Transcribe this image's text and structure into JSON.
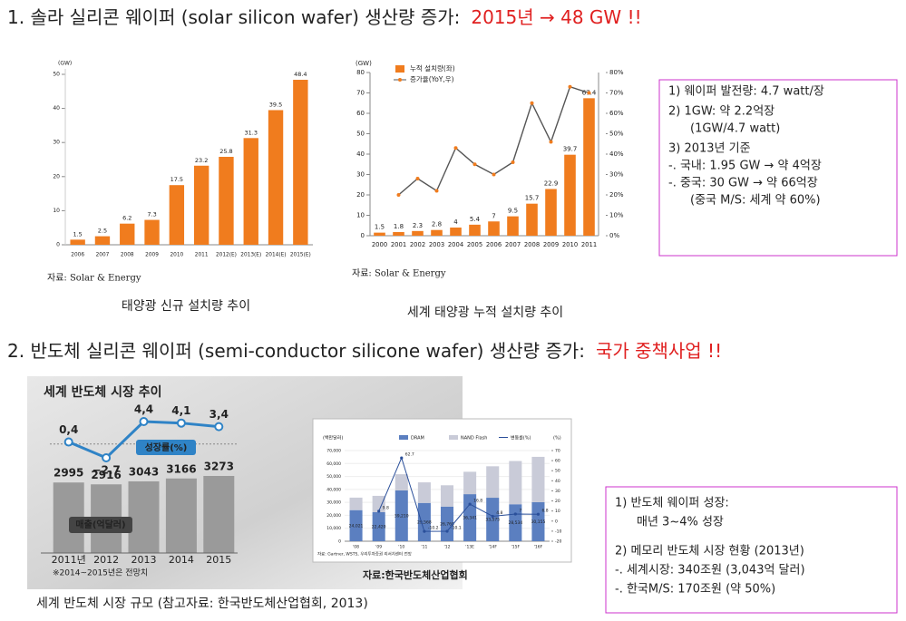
{
  "slide": {
    "heading1": {
      "text": "1. 솔라 실리콘 웨이퍼 (solar silicon wafer) 생산량 증가:",
      "highlight": "2015년 → 48 GW !!"
    },
    "notes1": [
      "1) 웨이퍼 발전량: 4.7 watt/장",
      "2) 1GW: 약 2.2억장",
      "(1GW/4.7 watt)",
      "3) 2013년 기준",
      "-. 국내: 1.95 GW → 약 4억장",
      "-. 중국: 30 GW → 약 66억장",
      "(중국 M/S: 세계 약 60%)"
    ],
    "heading2": {
      "text": "2. 반도체 실리콘 웨이퍼 (semi-conductor silicone wafer) 생산량 증가:",
      "highlight": "국가 중책사업 !!"
    },
    "notes2": [
      "1) 반도체 웨이퍼 성장:",
      "매년 3~4% 성장",
      "2) 메모리 반도체 시장 현황 (2013년)",
      "-. 세계시장: 340조원 (3,043억 달러)",
      "-. 한국M/S: 170조원 (약 50%)"
    ],
    "caption3": "세계 반도체 시장 규모 (참고자료: 한국반도체산업협회, 2013)"
  },
  "chart_data": [
    {
      "type": "bar",
      "unit": "(GW)",
      "caption": "태양광 신규 설치량 추이",
      "source": "자료: Solar & Energy",
      "categories": [
        "2006",
        "2007",
        "2008",
        "2009",
        "2010",
        "2011",
        "2012(E)",
        "2013(E)",
        "2014(E)",
        "2015(E)"
      ],
      "values": [
        1.5,
        2.5,
        6.2,
        7.3,
        17.5,
        23.2,
        25.8,
        31.3,
        39.5,
        48.4
      ],
      "color": "#f07c1e",
      "ylim": [
        0,
        50
      ],
      "yticks": [
        0,
        10,
        20,
        30,
        40,
        50
      ]
    },
    {
      "type": "bar_line",
      "unit": "(GW)",
      "caption": "세계 태양광 누적 설치량 추이",
      "source": "자료: Solar & Energy",
      "categories": [
        "2000",
        "2001",
        "2002",
        "2003",
        "2004",
        "2005",
        "2006",
        "2007",
        "2008",
        "2009",
        "2010",
        "2011"
      ],
      "series": [
        {
          "name": "누적 설치량(좌)",
          "color": "#f07c1e",
          "type": "bar",
          "values": [
            1.5,
            1.8,
            2.3,
            2.8,
            4.0,
            5.4,
            7.0,
            9.5,
            15.7,
            22.9,
            39.7,
            67.4
          ]
        },
        {
          "name": "증가율(YoY,우)",
          "color": "#555555",
          "type": "line",
          "axis": "y2",
          "values": [
            null,
            20,
            28,
            22,
            43,
            35,
            30,
            36,
            65,
            46,
            73,
            70
          ]
        }
      ],
      "ylim": [
        0,
        80
      ],
      "yticks": [
        0,
        10,
        20,
        30,
        40,
        50,
        60,
        70,
        80
      ],
      "y2lim": [
        0,
        80
      ],
      "y2ticks": [
        {
          "value": 0,
          "label": "0%"
        },
        {
          "value": 10,
          "label": "10%"
        },
        {
          "value": 20,
          "label": "20%"
        },
        {
          "value": 30,
          "label": "30%"
        },
        {
          "value": 40,
          "label": "40%"
        },
        {
          "value": 50,
          "label": "50%"
        },
        {
          "value": 60,
          "label": "60%"
        },
        {
          "value": 70,
          "label": "70%"
        },
        {
          "value": 80,
          "label": "80%"
        }
      ],
      "legend": "upper left"
    },
    {
      "type": "combo_panel",
      "title": "세계 반도체 시장 추이",
      "footnote": "※2014~2015년은 전망치",
      "source": "자료:한국반도체산업협회",
      "categories": [
        "2011년",
        "2012",
        "2013",
        "2014",
        "2015"
      ],
      "series": [
        {
          "name": "매출(억달러)",
          "color": "#9a9a9a",
          "type": "bar",
          "values": [
            2995,
            2916,
            3043,
            3166,
            3273
          ]
        },
        {
          "name": "성장률(%)",
          "color": "#2f83c6",
          "type": "line",
          "values": [
            0.4,
            -2.7,
            4.4,
            4.1,
            3.4
          ],
          "value_labels": [
            "0,4",
            "−2,7",
            "4,4",
            "4,1",
            "3,4"
          ]
        }
      ]
    },
    {
      "type": "stacked_bar_line",
      "unit": "(백만달러)",
      "y2unit": "(%)",
      "source": "자료: Gartner, WSTS, 우리투자증권 리서치센터 전망",
      "categories": [
        "'08",
        "'09",
        "'10",
        "'11",
        "'12",
        "'13E",
        "'14F",
        "'15F",
        "'16F"
      ],
      "series": [
        {
          "name": "DRAM",
          "color": "#5b7fc0",
          "type": "bar",
          "values": [
            24021,
            22420,
            39210,
            29568,
            26760,
            36341,
            33575,
            28534,
            30155
          ],
          "value_labels": [
            "24,021",
            "22,420",
            "39,210",
            "29,568",
            "26,760",
            "36,341",
            "33,575",
            "28,534",
            "30,155"
          ]
        },
        {
          "name": "NAND Flash",
          "color": "#c9cbd8",
          "type": "bar",
          "values": [
            9639,
            12613,
            12506,
            15879,
            16441,
            17283,
            24289,
            33399,
            34999
          ]
        },
        {
          "name": "변동률(%)",
          "color": "#2a4f9a",
          "type": "line",
          "axis": "y2",
          "values": [
            null,
            9.8,
            62.7,
            -10.2,
            -10.1,
            16.8,
            4.8,
            7.0,
            6.8
          ]
        }
      ],
      "ylim": [
        0,
        70000
      ],
      "yticks": [
        0,
        {
          "value": 10000,
          "label": "10,000"
        },
        {
          "value": 20000,
          "label": "20,000"
        },
        {
          "value": 30000,
          "label": "30,000"
        },
        {
          "value": 40000,
          "label": "40,000"
        },
        {
          "value": 50000,
          "label": "50,000"
        },
        {
          "value": 60000,
          "label": "60,000"
        },
        {
          "value": 70000,
          "label": "70,000"
        }
      ],
      "y2lim": [
        -20,
        70
      ],
      "y2ticks": [
        -20,
        -10,
        0,
        10,
        20,
        30,
        40,
        50,
        60,
        70
      ]
    }
  ]
}
